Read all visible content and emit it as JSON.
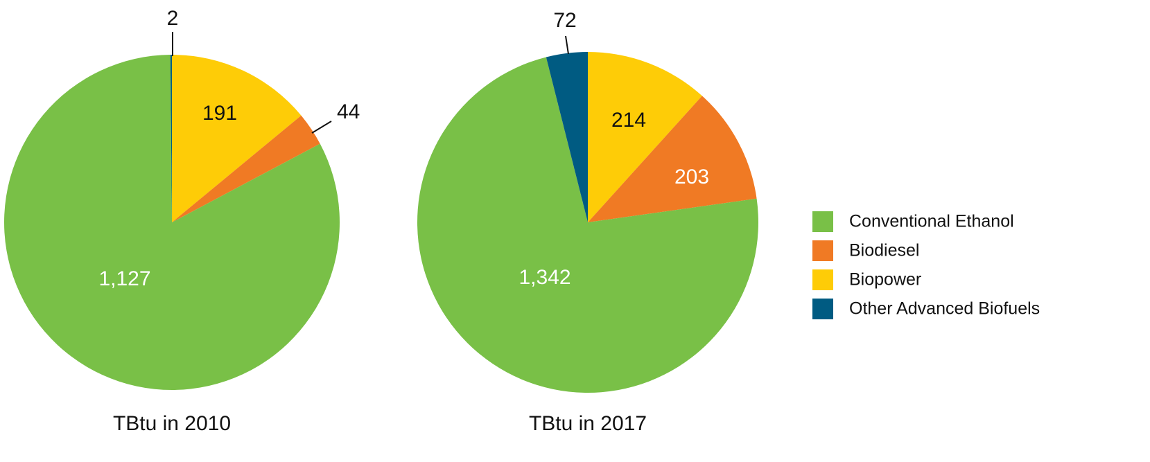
{
  "chart_data": [
    {
      "type": "pie",
      "title": "TBtu in 2010",
      "slices": [
        {
          "key": "biopower",
          "label": "Biopower",
          "value": 191,
          "display": "191"
        },
        {
          "key": "biodiesel",
          "label": "Biodiesel",
          "value": 44,
          "display": "44"
        },
        {
          "key": "ethanol",
          "label": "Conventional Ethanol",
          "value": 1127,
          "display": "1,127"
        },
        {
          "key": "advanced",
          "label": "Other Advanced Biofuels",
          "value": 2,
          "display": "2"
        }
      ]
    },
    {
      "type": "pie",
      "title": "TBtu in 2017",
      "slices": [
        {
          "key": "biopower",
          "label": "Biopower",
          "value": 214,
          "display": "214"
        },
        {
          "key": "biodiesel",
          "label": "Biodiesel",
          "value": 203,
          "display": "203"
        },
        {
          "key": "ethanol",
          "label": "Conventional Ethanol",
          "value": 1342,
          "display": "1,342"
        },
        {
          "key": "advanced",
          "label": "Other Advanced Biofuels",
          "value": 72,
          "display": "72"
        }
      ]
    }
  ],
  "legend": {
    "position": "right",
    "items": [
      {
        "key": "ethanol",
        "label": "Conventional Ethanol",
        "color": "#79c047"
      },
      {
        "key": "biodiesel",
        "label": "Biodiesel",
        "color": "#f07a24"
      },
      {
        "key": "biopower",
        "label": "Biopower",
        "color": "#fecc07"
      },
      {
        "key": "advanced",
        "label": "Other Advanced Biofuels",
        "color": "#005b82"
      }
    ]
  }
}
